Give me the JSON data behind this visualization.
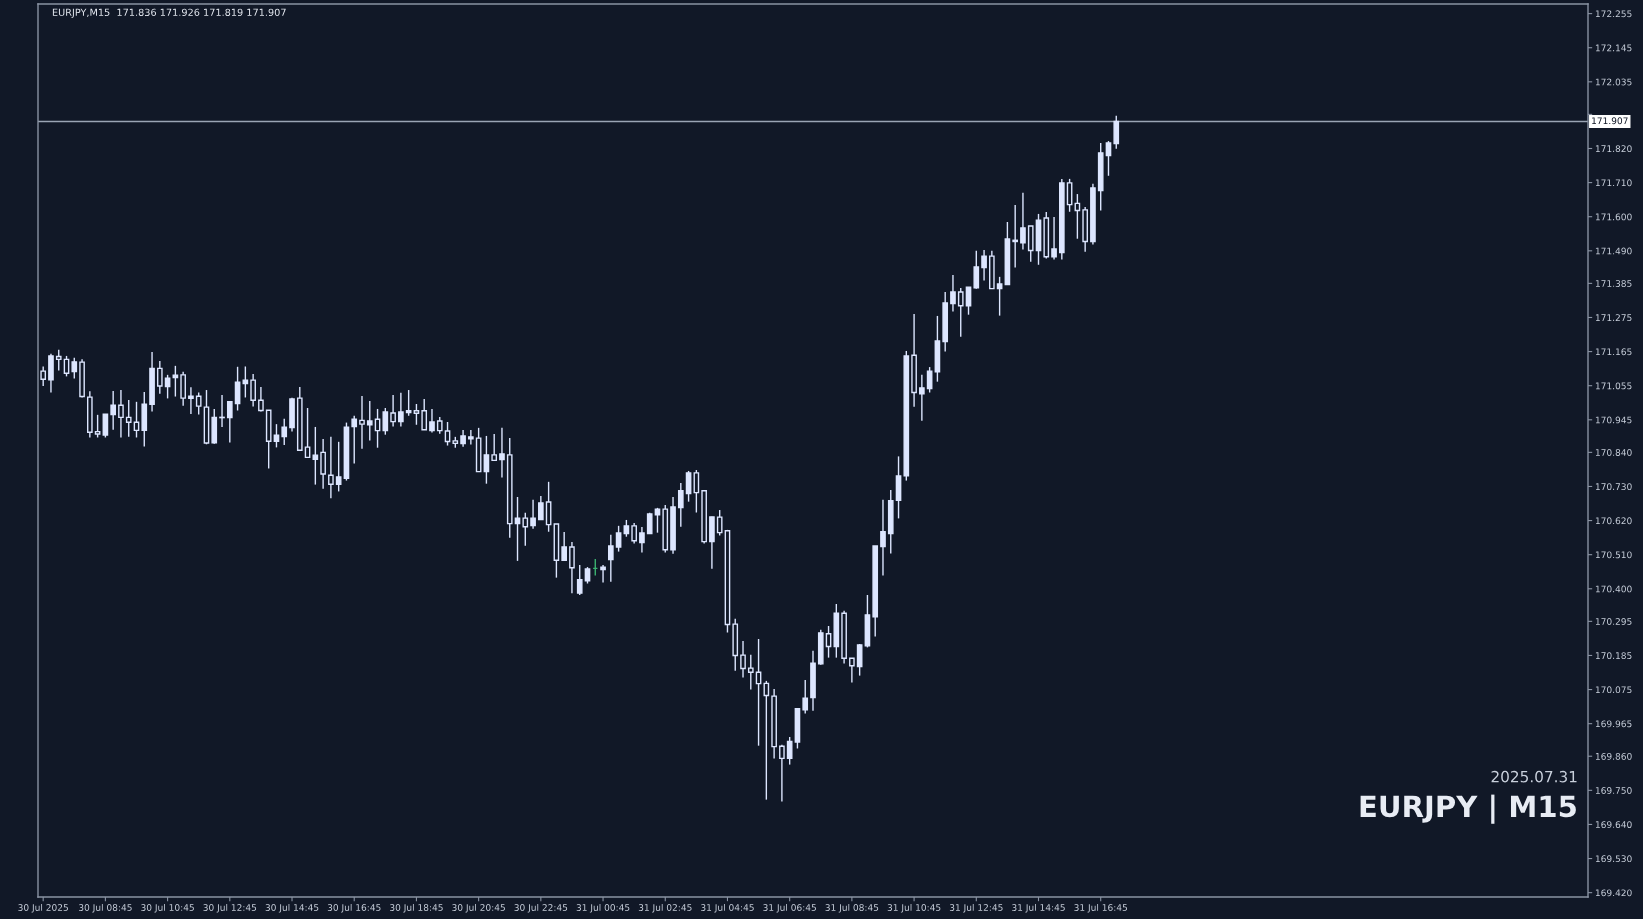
{
  "chart_data": {
    "type": "candlestick",
    "title": "EURJPY,M15  171.836 171.926 171.819 171.907",
    "annotations": [
      "2025.07.31",
      "EURJPY | M15"
    ],
    "x": [
      "2025-07-30T06:45",
      "2025-07-30T07:00",
      "2025-07-30T07:15",
      "2025-07-30T07:30",
      "2025-07-30T07:45",
      "2025-07-30T08:00",
      "2025-07-30T08:15",
      "2025-07-30T08:30",
      "2025-07-30T08:45",
      "2025-07-30T09:00",
      "2025-07-30T09:15",
      "2025-07-30T09:30",
      "2025-07-30T09:45",
      "2025-07-30T10:00",
      "2025-07-30T10:15",
      "2025-07-30T10:30",
      "2025-07-30T10:45",
      "2025-07-30T11:00",
      "2025-07-30T11:15",
      "2025-07-30T11:30",
      "2025-07-30T11:45",
      "2025-07-30T12:00",
      "2025-07-30T12:15",
      "2025-07-30T12:30",
      "2025-07-30T12:45",
      "2025-07-30T13:00",
      "2025-07-30T13:15",
      "2025-07-30T13:30",
      "2025-07-30T13:45",
      "2025-07-30T14:00",
      "2025-07-30T14:15",
      "2025-07-30T14:30",
      "2025-07-30T14:45",
      "2025-07-30T15:00",
      "2025-07-30T15:15",
      "2025-07-30T15:30",
      "2025-07-30T15:45",
      "2025-07-30T16:00",
      "2025-07-30T16:15",
      "2025-07-30T16:30",
      "2025-07-30T16:45",
      "2025-07-30T17:00",
      "2025-07-30T17:15",
      "2025-07-30T17:30",
      "2025-07-30T17:45",
      "2025-07-30T18:00",
      "2025-07-30T18:15",
      "2025-07-30T18:30",
      "2025-07-30T18:45",
      "2025-07-30T19:00",
      "2025-07-30T19:15",
      "2025-07-30T19:30",
      "2025-07-30T19:45",
      "2025-07-30T20:00",
      "2025-07-30T20:15",
      "2025-07-30T20:30",
      "2025-07-30T20:45",
      "2025-07-30T21:00",
      "2025-07-30T21:15",
      "2025-07-30T21:30",
      "2025-07-30T21:45",
      "2025-07-30T22:00",
      "2025-07-30T22:15",
      "2025-07-30T22:30",
      "2025-07-30T22:45",
      "2025-07-30T23:00",
      "2025-07-30T23:15",
      "2025-07-30T23:30",
      "2025-07-30T23:45",
      "2025-07-31T00:00",
      "2025-07-31T00:15",
      "2025-07-31T00:30",
      "2025-07-31T00:45",
      "2025-07-31T01:00",
      "2025-07-31T01:15",
      "2025-07-31T01:30",
      "2025-07-31T01:45",
      "2025-07-31T02:00",
      "2025-07-31T02:15",
      "2025-07-31T02:30",
      "2025-07-31T02:45",
      "2025-07-31T03:00",
      "2025-07-31T03:15",
      "2025-07-31T03:30",
      "2025-07-31T03:45",
      "2025-07-31T04:00",
      "2025-07-31T04:15",
      "2025-07-31T04:30",
      "2025-07-31T04:45",
      "2025-07-31T05:00",
      "2025-07-31T05:15",
      "2025-07-31T05:30",
      "2025-07-31T05:45",
      "2025-07-31T06:00",
      "2025-07-31T06:15",
      "2025-07-31T06:30",
      "2025-07-31T06:45",
      "2025-07-31T07:00",
      "2025-07-31T07:15",
      "2025-07-31T07:30",
      "2025-07-31T07:45",
      "2025-07-31T08:00",
      "2025-07-31T08:15",
      "2025-07-31T08:30",
      "2025-07-31T08:45",
      "2025-07-31T09:00",
      "2025-07-31T09:15",
      "2025-07-31T09:30",
      "2025-07-31T09:45",
      "2025-07-31T10:00",
      "2025-07-31T10:15",
      "2025-07-31T10:30",
      "2025-07-31T10:45",
      "2025-07-31T11:00",
      "2025-07-31T11:15",
      "2025-07-31T11:30",
      "2025-07-31T11:45",
      "2025-07-31T12:00",
      "2025-07-31T12:15",
      "2025-07-31T12:30",
      "2025-07-31T12:45",
      "2025-07-31T13:00",
      "2025-07-31T13:15",
      "2025-07-31T13:30",
      "2025-07-31T13:45",
      "2025-07-31T14:00",
      "2025-07-31T14:15",
      "2025-07-31T14:30",
      "2025-07-31T14:45",
      "2025-07-31T15:00",
      "2025-07-31T15:15",
      "2025-07-31T15:30",
      "2025-07-31T15:45",
      "2025-07-31T16:00",
      "2025-07-31T16:15",
      "2025-07-31T16:30",
      "2025-07-31T16:45",
      "2025-07-31T17:00",
      "2025-07-31T17:15"
    ],
    "ohlc": [
      [
        171.102,
        171.117,
        171.054,
        171.076
      ],
      [
        171.074,
        171.158,
        171.033,
        171.151
      ],
      [
        171.149,
        171.171,
        171.104,
        171.14
      ],
      [
        171.14,
        171.151,
        171.085,
        171.095
      ],
      [
        171.101,
        171.145,
        171.078,
        171.132
      ],
      [
        171.131,
        171.14,
        171.017,
        171.02
      ],
      [
        171.018,
        171.037,
        170.888,
        170.905
      ],
      [
        170.907,
        170.961,
        170.888,
        170.899
      ],
      [
        170.896,
        170.963,
        170.888,
        170.963
      ],
      [
        170.962,
        171.038,
        170.913,
        170.992
      ],
      [
        170.992,
        171.041,
        170.888,
        170.953
      ],
      [
        170.953,
        171.009,
        170.89,
        170.937
      ],
      [
        170.937,
        171.003,
        170.888,
        170.911
      ],
      [
        170.911,
        171.035,
        170.859,
        170.995
      ],
      [
        170.995,
        171.164,
        170.972,
        171.111
      ],
      [
        171.111,
        171.135,
        171.029,
        171.054
      ],
      [
        171.052,
        171.09,
        171.014,
        171.079
      ],
      [
        171.081,
        171.119,
        171.02,
        171.089
      ],
      [
        171.09,
        171.1,
        170.99,
        171.015
      ],
      [
        171.014,
        171.05,
        170.964,
        171.021
      ],
      [
        171.021,
        171.033,
        170.962,
        170.989
      ],
      [
        170.986,
        171.041,
        170.866,
        170.87
      ],
      [
        170.871,
        170.98,
        170.868,
        170.953
      ],
      [
        170.953,
        171.025,
        170.922,
        170.952
      ],
      [
        170.952,
        171.006,
        170.872,
        171.003
      ],
      [
        170.997,
        171.116,
        170.975,
        171.066
      ],
      [
        171.062,
        171.117,
        171.017,
        171.073
      ],
      [
        171.073,
        171.093,
        170.988,
        171.008
      ],
      [
        171.008,
        171.051,
        170.972,
        170.975
      ],
      [
        170.976,
        170.976,
        170.788,
        170.876
      ],
      [
        170.876,
        170.931,
        170.856,
        170.895
      ],
      [
        170.891,
        170.948,
        170.864,
        170.921
      ],
      [
        170.92,
        171.016,
        170.907,
        171.012
      ],
      [
        171.015,
        171.051,
        170.847,
        170.847
      ],
      [
        170.857,
        170.983,
        170.822,
        170.824
      ],
      [
        170.818,
        170.922,
        170.736,
        170.831
      ],
      [
        170.84,
        170.883,
        170.723,
        170.77
      ],
      [
        170.766,
        170.89,
        170.692,
        170.737
      ],
      [
        170.737,
        170.874,
        170.714,
        170.761
      ],
      [
        170.756,
        170.936,
        170.749,
        170.921
      ],
      [
        170.923,
        170.958,
        170.804,
        170.947
      ],
      [
        170.943,
        171.022,
        170.852,
        170.931
      ],
      [
        170.929,
        171.006,
        170.878,
        170.941
      ],
      [
        170.947,
        170.98,
        170.855,
        170.91
      ],
      [
        170.91,
        170.983,
        170.897,
        170.97
      ],
      [
        170.967,
        171.025,
        170.923,
        170.939
      ],
      [
        170.939,
        171.032,
        170.923,
        170.97
      ],
      [
        170.968,
        171.041,
        170.958,
        170.974
      ],
      [
        170.974,
        170.996,
        170.929,
        170.966
      ],
      [
        170.974,
        171.012,
        170.913,
        170.913
      ],
      [
        170.91,
        170.98,
        170.904,
        170.938
      ],
      [
        170.941,
        170.954,
        170.9,
        170.91
      ],
      [
        170.909,
        170.938,
        170.862,
        170.875
      ],
      [
        170.877,
        170.89,
        170.855,
        170.869
      ],
      [
        170.868,
        170.912,
        170.858,
        170.893
      ],
      [
        170.884,
        170.912,
        170.865,
        170.89
      ],
      [
        170.886,
        170.919,
        170.778,
        170.778
      ],
      [
        170.778,
        170.893,
        170.739,
        170.832
      ],
      [
        170.832,
        170.899,
        170.814,
        170.814
      ],
      [
        170.817,
        170.919,
        170.759,
        170.835
      ],
      [
        170.832,
        170.886,
        170.565,
        170.61
      ],
      [
        170.61,
        170.696,
        170.49,
        170.628
      ],
      [
        170.628,
        170.645,
        170.539,
        170.6
      ],
      [
        170.604,
        170.687,
        170.594,
        170.628
      ],
      [
        170.623,
        170.699,
        170.623,
        170.677
      ],
      [
        170.68,
        170.745,
        170.584,
        170.607
      ],
      [
        170.609,
        170.609,
        170.436,
        170.492
      ],
      [
        170.492,
        170.583,
        170.49,
        170.535
      ],
      [
        170.535,
        170.551,
        170.386,
        170.468
      ],
      [
        170.386,
        170.477,
        170.38,
        170.429
      ],
      [
        170.426,
        170.47,
        170.417,
        170.464
      ],
      [
        170.466,
        170.496,
        170.443,
        170.466
      ],
      [
        170.462,
        170.477,
        170.42,
        170.47
      ],
      [
        170.494,
        170.574,
        170.423,
        170.538
      ],
      [
        170.535,
        170.603,
        170.52,
        170.58
      ],
      [
        170.578,
        170.622,
        170.568,
        170.603
      ],
      [
        170.603,
        170.612,
        170.546,
        170.555
      ],
      [
        170.549,
        170.599,
        170.517,
        170.58
      ],
      [
        170.578,
        170.645,
        170.578,
        170.641
      ],
      [
        170.639,
        170.661,
        170.581,
        170.657
      ],
      [
        170.657,
        170.67,
        170.517,
        170.526
      ],
      [
        170.526,
        170.696,
        170.513,
        170.664
      ],
      [
        170.662,
        170.741,
        170.6,
        170.716
      ],
      [
        170.707,
        170.78,
        170.681,
        170.774
      ],
      [
        170.774,
        170.783,
        170.646,
        170.71
      ],
      [
        170.716,
        170.716,
        170.546,
        170.552
      ],
      [
        170.552,
        170.632,
        170.465,
        170.632
      ],
      [
        170.631,
        170.654,
        170.572,
        170.581
      ],
      [
        170.587,
        170.59,
        170.259,
        170.285
      ],
      [
        170.286,
        170.303,
        170.136,
        170.185
      ],
      [
        170.186,
        170.232,
        170.114,
        170.143
      ],
      [
        170.144,
        170.187,
        170.075,
        170.131
      ],
      [
        170.131,
        170.238,
        169.894,
        170.094
      ],
      [
        170.095,
        170.103,
        169.72,
        170.056
      ],
      [
        170.054,
        170.077,
        169.853,
        169.891
      ],
      [
        169.892,
        169.897,
        169.714,
        169.853
      ],
      [
        169.853,
        169.922,
        169.833,
        169.908
      ],
      [
        169.906,
        170.013,
        169.885,
        170.013
      ],
      [
        170.01,
        170.106,
        169.998,
        170.047
      ],
      [
        170.049,
        170.2,
        170.007,
        170.16
      ],
      [
        170.158,
        170.268,
        170.155,
        170.258
      ],
      [
        170.255,
        170.28,
        170.178,
        170.214
      ],
      [
        170.214,
        170.351,
        170.178,
        170.321
      ],
      [
        170.321,
        170.329,
        170.159,
        170.176
      ],
      [
        170.176,
        170.176,
        170.098,
        170.152
      ],
      [
        170.149,
        170.222,
        170.12,
        170.219
      ],
      [
        170.216,
        170.38,
        170.211,
        170.316
      ],
      [
        170.31,
        170.538,
        170.246,
        170.538
      ],
      [
        170.536,
        170.687,
        170.443,
        170.584
      ],
      [
        170.578,
        170.719,
        170.514,
        170.684
      ],
      [
        170.685,
        170.827,
        170.627,
        170.764
      ],
      [
        170.764,
        171.167,
        170.749,
        171.151
      ],
      [
        171.153,
        171.286,
        170.987,
        171.033
      ],
      [
        171.029,
        171.09,
        170.942,
        171.048
      ],
      [
        171.046,
        171.115,
        171.033,
        171.102
      ],
      [
        171.1,
        171.28,
        171.068,
        171.199
      ],
      [
        171.197,
        171.357,
        171.165,
        171.322
      ],
      [
        171.32,
        171.412,
        171.294,
        171.357
      ],
      [
        171.357,
        171.37,
        171.213,
        171.313
      ],
      [
        171.313,
        171.373,
        171.284,
        171.373
      ],
      [
        171.371,
        171.49,
        171.368,
        171.438
      ],
      [
        171.436,
        171.493,
        171.394,
        171.473
      ],
      [
        171.473,
        171.49,
        171.368,
        171.368
      ],
      [
        171.368,
        171.406,
        171.281,
        171.383
      ],
      [
        171.381,
        171.583,
        171.381,
        171.528
      ],
      [
        171.52,
        171.638,
        171.436,
        171.524
      ],
      [
        171.516,
        171.677,
        171.494,
        171.564
      ],
      [
        171.57,
        171.57,
        171.455,
        171.491
      ],
      [
        171.491,
        171.609,
        171.445,
        171.589
      ],
      [
        171.596,
        171.615,
        171.465,
        171.471
      ],
      [
        171.471,
        171.599,
        171.462,
        171.496
      ],
      [
        171.484,
        171.722,
        171.462,
        171.709
      ],
      [
        171.709,
        171.722,
        171.616,
        171.639
      ],
      [
        171.643,
        171.673,
        171.529,
        171.62
      ],
      [
        171.622,
        171.631,
        171.487,
        171.52
      ],
      [
        171.52,
        171.706,
        171.51,
        171.693
      ],
      [
        171.684,
        171.838,
        171.62,
        171.806
      ],
      [
        171.797,
        171.844,
        171.732,
        171.838
      ],
      [
        171.836,
        171.926,
        171.819,
        171.907
      ]
    ],
    "colors": [
      "#dde6ff",
      "#dde6ff",
      "#dde6ff",
      "#dde6ff",
      "#dde6ff",
      "#dde6ff",
      "#dde6ff",
      "#dde6ff",
      "#dde6ff",
      "#dde6ff",
      "#dde6ff",
      "#dde6ff",
      "#dde6ff",
      "#dde6ff",
      "#dde6ff",
      "#dde6ff",
      "#dde6ff",
      "#dde6ff",
      "#dde6ff",
      "#dde6ff",
      "#dde6ff",
      "#dde6ff",
      "#dde6ff",
      "#dde6ff",
      "#dde6ff",
      "#dde6ff",
      "#dde6ff",
      "#dde6ff",
      "#dde6ff",
      "#dde6ff",
      "#dde6ff",
      "#dde6ff",
      "#dde6ff",
      "#dde6ff",
      "#dde6ff",
      "#dde6ff",
      "#dde6ff",
      "#dde6ff",
      "#dde6ff",
      "#dde6ff",
      "#dde6ff",
      "#dde6ff",
      "#dde6ff",
      "#dde6ff",
      "#dde6ff",
      "#dde6ff",
      "#dde6ff",
      "#dde6ff",
      "#dde6ff",
      "#dde6ff",
      "#dde6ff",
      "#dde6ff",
      "#dde6ff",
      "#dde6ff",
      "#dde6ff",
      "#dde6ff",
      "#dde6ff",
      "#dde6ff",
      "#dde6ff",
      "#dde6ff",
      "#dde6ff",
      "#dde6ff",
      "#dde6ff",
      "#dde6ff",
      "#dde6ff",
      "#dde6ff",
      "#dde6ff",
      "#dde6ff",
      "#dde6ff",
      "#dde6ff",
      "#dde6ff",
      "#3cb371",
      "#dde6ff",
      "#dde6ff",
      "#dde6ff",
      "#dde6ff",
      "#dde6ff",
      "#dde6ff",
      "#dde6ff",
      "#dde6ff",
      "#dde6ff",
      "#dde6ff",
      "#dde6ff",
      "#dde6ff",
      "#dde6ff",
      "#dde6ff",
      "#dde6ff",
      "#dde6ff",
      "#dde6ff",
      "#dde6ff",
      "#dde6ff",
      "#dde6ff",
      "#dde6ff",
      "#dde6ff",
      "#dde6ff",
      "#dde6ff",
      "#dde6ff",
      "#dde6ff",
      "#dde6ff",
      "#dde6ff",
      "#dde6ff",
      "#dde6ff",
      "#dde6ff",
      "#dde6ff",
      "#dde6ff",
      "#dde6ff",
      "#dde6ff",
      "#dde6ff",
      "#dde6ff",
      "#dde6ff",
      "#dde6ff",
      "#dde6ff",
      "#dde6ff",
      "#dde6ff",
      "#dde6ff",
      "#dde6ff",
      "#dde6ff",
      "#dde6ff",
      "#dde6ff",
      "#dde6ff",
      "#dde6ff",
      "#dde6ff",
      "#dde6ff",
      "#dde6ff",
      "#dde6ff",
      "#dde6ff",
      "#dde6ff",
      "#dde6ff",
      "#dde6ff",
      "#dde6ff",
      "#dde6ff",
      "#dde6ff",
      "#dde6ff",
      "#dde6ff",
      "#dde6ff",
      "#dde6ff",
      "#dde6ff",
      "#dde6ff",
      "#dde6ff"
    ],
    "xlim": [
      "2025-07-30T06:35",
      "2025-08-01T08:25"
    ],
    "xticks": [
      {
        "value": "2025-07-30T06:45",
        "label": "30 Jul 2025"
      },
      {
        "value": "2025-07-30T08:45",
        "label": "30 Jul 08:45"
      },
      {
        "value": "2025-07-30T10:45",
        "label": "30 Jul 10:45"
      },
      {
        "value": "2025-07-30T12:45",
        "label": "30 Jul 12:45"
      },
      {
        "value": "2025-07-30T14:45",
        "label": "30 Jul 14:45"
      },
      {
        "value": "2025-07-30T16:45",
        "label": "30 Jul 16:45"
      },
      {
        "value": "2025-07-30T18:45",
        "label": "30 Jul 18:45"
      },
      {
        "value": "2025-07-30T20:45",
        "label": "30 Jul 20:45"
      },
      {
        "value": "2025-07-30T22:45",
        "label": "30 Jul 22:45"
      },
      {
        "value": "2025-07-31T00:45",
        "label": "31 Jul 00:45"
      },
      {
        "value": "2025-07-31T02:45",
        "label": "31 Jul 02:45"
      },
      {
        "value": "2025-07-31T04:45",
        "label": "31 Jul 04:45"
      },
      {
        "value": "2025-07-31T06:45",
        "label": "31 Jul 06:45"
      },
      {
        "value": "2025-07-31T08:45",
        "label": "31 Jul 08:45"
      },
      {
        "value": "2025-07-31T10:45",
        "label": "31 Jul 10:45"
      },
      {
        "value": "2025-07-31T12:45",
        "label": "31 Jul 12:45"
      },
      {
        "value": "2025-07-31T14:45",
        "label": "31 Jul 14:45"
      },
      {
        "value": "2025-07-31T16:45",
        "label": "31 Jul 16:45"
      }
    ],
    "ylim": [
      169.406,
      172.286
    ],
    "yticks": [
      172.255,
      172.145,
      172.035,
      {
        "value": 171.93,
        "label": null
      },
      {
        "value": 171.82,
        "label": "171.820"
      },
      {
        "value": 171.71,
        "label": "171.710"
      },
      {
        "value": 171.6,
        "label": "171.600"
      },
      {
        "value": 171.49,
        "label": "171.490"
      },
      171.385,
      171.275,
      171.165,
      171.055,
      170.945,
      {
        "value": 170.84,
        "label": "170.840"
      },
      {
        "value": 170.73,
        "label": "170.730"
      },
      {
        "value": 170.62,
        "label": "170.620"
      },
      {
        "value": 170.51,
        "label": "170.510"
      },
      {
        "value": 170.4,
        "label": "170.400"
      },
      170.295,
      170.185,
      170.075,
      169.965,
      {
        "value": 169.86,
        "label": "169.860"
      },
      {
        "value": 169.75,
        "label": "169.750"
      },
      {
        "value": 169.64,
        "label": "169.640"
      },
      {
        "value": 169.53,
        "label": "169.530"
      },
      {
        "value": 169.42,
        "label": "169.420"
      }
    ],
    "ref_lines": [
      {
        "axis": "y",
        "value": 171.907,
        "label": "171.907",
        "color": "#9aa4b4",
        "line_style": "solid"
      }
    ],
    "grid": false,
    "legend": false
  }
}
